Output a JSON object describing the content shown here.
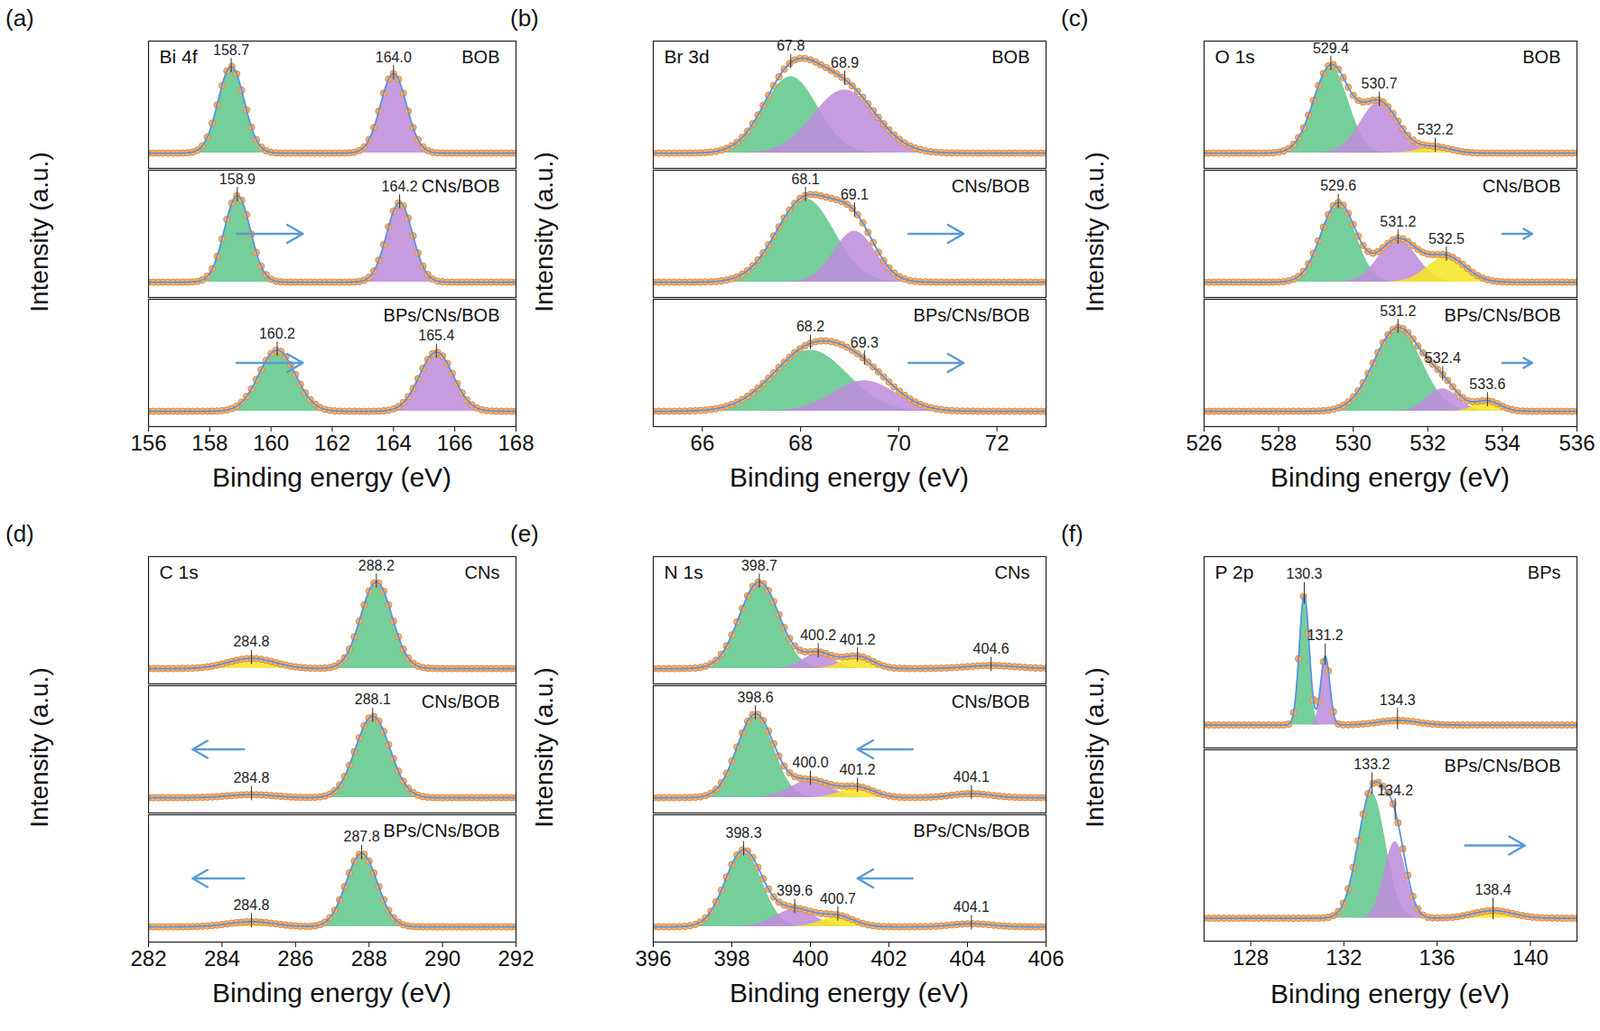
{
  "chart_data": [
    {
      "type": "xps",
      "subplot_label": "(a)",
      "title": "Bi 4f",
      "x_label": "Binding energy (eV)",
      "y_label": "Intensity (a.u.)",
      "xlim": [
        156,
        168
      ],
      "xticks": [
        156,
        158,
        160,
        162,
        164,
        166,
        168
      ],
      "ylim": [
        -0.15,
        1.1
      ],
      "tick_labels": "x",
      "samples": [
        {
          "name": "BOB",
          "peaks": [
            {
              "center": 158.7,
              "label": "158.7",
              "height": 0.85,
              "fwhm": 1.0,
              "color": "#62c88c"
            },
            {
              "center": 164.0,
              "label": "164.0",
              "height": 0.78,
              "fwhm": 1.0,
              "color": "#bf8ddc"
            }
          ]
        },
        {
          "name": "CNs/BOB",
          "arrow": "right",
          "peaks": [
            {
              "center": 158.9,
              "label": "158.9",
              "height": 0.85,
              "fwhm": 1.0,
              "color": "#62c88c"
            },
            {
              "center": 164.2,
              "label": "164.2",
              "height": 0.78,
              "fwhm": 1.0,
              "color": "#bf8ddc"
            }
          ]
        },
        {
          "name": "BPs/CNs/BOB",
          "arrow": "right",
          "peaks": [
            {
              "center": 160.2,
              "label": "160.2",
              "height": 0.6,
              "fwhm": 1.4,
              "color": "#62c88c"
            },
            {
              "center": 165.4,
              "label": "165.4",
              "height": 0.58,
              "fwhm": 1.3,
              "color": "#bf8ddc"
            }
          ]
        }
      ]
    },
    {
      "type": "xps",
      "subplot_label": "(b)",
      "title": "Br 3d",
      "x_label": "Binding energy (eV)",
      "y_label": "Intensity (a.u.)",
      "xlim": [
        65,
        73
      ],
      "xticks": [
        66,
        68,
        70,
        72
      ],
      "ylim": [
        -0.15,
        1.1
      ],
      "tick_labels": "x",
      "samples": [
        {
          "name": "BOB",
          "peaks": [
            {
              "center": 67.8,
              "label": "67.8",
              "height": 0.75,
              "fwhm": 1.3,
              "color": "#62c88c"
            },
            {
              "center": 68.9,
              "label": "68.9",
              "height": 0.62,
              "fwhm": 1.5,
              "color": "#bf8ddc"
            }
          ]
        },
        {
          "name": "CNs/BOB",
          "arrow": "right",
          "peaks": [
            {
              "center": 68.1,
              "label": "68.1",
              "height": 0.82,
              "fwhm": 1.4,
              "color": "#62c88c"
            },
            {
              "center": 69.1,
              "label": "69.1",
              "height": 0.5,
              "fwhm": 1.0,
              "color": "#bf8ddc"
            }
          ]
        },
        {
          "name": "BPs/CNs/BOB",
          "arrow": "right",
          "peaks": [
            {
              "center": 68.2,
              "label": "68.2",
              "height": 0.6,
              "fwhm": 1.8,
              "color": "#62c88c"
            },
            {
              "center": 69.3,
              "label": "69.3",
              "height": 0.3,
              "fwhm": 1.5,
              "color": "#bf8ddc"
            }
          ]
        }
      ]
    },
    {
      "type": "xps",
      "subplot_label": "(c)",
      "title": "O 1s",
      "x_label": "Binding energy (eV)",
      "y_label": "Intensity (a.u.)",
      "xlim": [
        526,
        536
      ],
      "xticks": [
        526,
        528,
        530,
        532,
        534,
        536
      ],
      "ylim": [
        -0.15,
        1.1
      ],
      "tick_labels": "x",
      "samples": [
        {
          "name": "BOB",
          "peaks": [
            {
              "center": 529.4,
              "label": "529.4",
              "height": 0.85,
              "fwhm": 1.1,
              "color": "#62c88c"
            },
            {
              "center": 530.7,
              "label": "530.7",
              "height": 0.5,
              "fwhm": 1.2,
              "color": "#bf8ddc"
            },
            {
              "center": 532.2,
              "label": "532.2",
              "height": 0.06,
              "fwhm": 1.0,
              "color": "#f5e628"
            }
          ]
        },
        {
          "name": "CNs/BOB",
          "arrow": "right",
          "peaks": [
            {
              "center": 529.6,
              "label": "529.6",
              "height": 0.78,
              "fwhm": 1.1,
              "color": "#62c88c"
            },
            {
              "center": 531.2,
              "label": "531.2",
              "height": 0.42,
              "fwhm": 1.2,
              "color": "#bf8ddc"
            },
            {
              "center": 532.5,
              "label": "532.5",
              "height": 0.25,
              "fwhm": 1.2,
              "color": "#f5e628"
            }
          ]
        },
        {
          "name": "BPs/CNs/BOB",
          "arrow": "right",
          "peaks": [
            {
              "center": 531.2,
              "label": "531.2",
              "height": 0.82,
              "fwhm": 1.5,
              "color": "#62c88c"
            },
            {
              "center": 532.4,
              "label": "532.4",
              "height": 0.22,
              "fwhm": 1.0,
              "color": "#bf8ddc"
            },
            {
              "center": 533.6,
              "label": "533.6",
              "height": 0.1,
              "fwhm": 0.8,
              "color": "#f5e628"
            }
          ]
        }
      ]
    },
    {
      "type": "xps",
      "subplot_label": "(d)",
      "title": "C 1s",
      "x_label": "Binding energy (eV)",
      "y_label": "Intensity (a.u.)",
      "xlim": [
        282,
        292
      ],
      "xticks": [
        282,
        284,
        286,
        288,
        290,
        292
      ],
      "ylim": [
        -0.15,
        1.1
      ],
      "tick_labels": "x",
      "samples": [
        {
          "name": "CNs",
          "peaks": [
            {
              "center": 284.8,
              "label": "284.8",
              "height": 0.1,
              "fwhm": 1.5,
              "color": "#f5e628"
            },
            {
              "center": 288.2,
              "label": "288.2",
              "height": 0.85,
              "fwhm": 1.0,
              "color": "#62c88c"
            }
          ]
        },
        {
          "name": "CNs/BOB",
          "arrow": "left",
          "peaks": [
            {
              "center": 284.8,
              "label": "284.8",
              "height": 0.03,
              "fwhm": 1.5,
              "color": "#f5e628"
            },
            {
              "center": 288.1,
              "label": "288.1",
              "height": 0.8,
              "fwhm": 1.1,
              "color": "#62c88c"
            }
          ]
        },
        {
          "name": "BPs/CNs/BOB",
          "arrow": "left",
          "peaks": [
            {
              "center": 284.8,
              "label": "284.8",
              "height": 0.05,
              "fwhm": 1.5,
              "color": "#f5e628"
            },
            {
              "center": 287.8,
              "label": "287.8",
              "height": 0.72,
              "fwhm": 1.0,
              "color": "#62c88c"
            }
          ]
        }
      ]
    },
    {
      "type": "xps",
      "subplot_label": "(e)",
      "title": "N 1s",
      "x_label": "Binding energy (eV)",
      "y_label": "Intensity (a.u.)",
      "xlim": [
        396,
        406
      ],
      "xticks": [
        396,
        398,
        400,
        402,
        404,
        406
      ],
      "ylim": [
        -0.15,
        1.1
      ],
      "tick_labels": "x",
      "samples": [
        {
          "name": "CNs",
          "peaks": [
            {
              "center": 398.7,
              "label": "398.7",
              "height": 0.85,
              "fwhm": 1.2,
              "color": "#62c88c"
            },
            {
              "center": 400.2,
              "label": "400.2",
              "height": 0.15,
              "fwhm": 0.9,
              "color": "#bf8ddc"
            },
            {
              "center": 401.2,
              "label": "401.2",
              "height": 0.12,
              "fwhm": 0.9,
              "color": "#f5e628"
            },
            {
              "center": 404.6,
              "label": "404.6",
              "height": 0.03,
              "fwhm": 1.5,
              "color": "#6cc8ae"
            }
          ]
        },
        {
          "name": "CNs/BOB",
          "arrow": "left",
          "peaks": [
            {
              "center": 398.6,
              "label": "398.6",
              "height": 0.82,
              "fwhm": 1.1,
              "color": "#62c88c"
            },
            {
              "center": 400.0,
              "label": "400.0",
              "height": 0.17,
              "fwhm": 1.2,
              "color": "#bf8ddc"
            },
            {
              "center": 401.2,
              "label": "401.2",
              "height": 0.1,
              "fwhm": 1.0,
              "color": "#f5e628"
            },
            {
              "center": 404.1,
              "label": "404.1",
              "height": 0.04,
              "fwhm": 1.2,
              "color": "#6cc8ae"
            }
          ]
        },
        {
          "name": "BPs/CNs/BOB",
          "arrow": "left",
          "peaks": [
            {
              "center": 398.3,
              "label": "398.3",
              "height": 0.75,
              "fwhm": 1.1,
              "color": "#62c88c"
            },
            {
              "center": 399.6,
              "label": "399.6",
              "height": 0.17,
              "fwhm": 1.2,
              "color": "#bf8ddc"
            },
            {
              "center": 400.7,
              "label": "400.7",
              "height": 0.1,
              "fwhm": 1.0,
              "color": "#f5e628"
            },
            {
              "center": 404.1,
              "label": "404.1",
              "height": 0.03,
              "fwhm": 1.2,
              "color": "#6cc8ae"
            }
          ]
        }
      ]
    },
    {
      "type": "xps",
      "subplot_label": "(f)",
      "title": "P 2p",
      "x_label": "Binding energy (eV)",
      "y_label": "Intensity (a.u.)",
      "xlim": [
        126,
        142
      ],
      "xticks": [
        128,
        132,
        136,
        140
      ],
      "ylim": [
        -0.15,
        1.1
      ],
      "tick_labels": "x",
      "samples": [
        {
          "name": "BPs",
          "peaks": [
            {
              "center": 130.3,
              "label": "130.3",
              "height": 0.85,
              "fwhm": 0.5,
              "color": "#62c88c"
            },
            {
              "center": 131.2,
              "label": "131.2",
              "height": 0.45,
              "fwhm": 0.45,
              "color": "#bf8ddc"
            },
            {
              "center": 134.3,
              "label": "134.3",
              "height": 0.03,
              "fwhm": 2.0,
              "color": "#f5e628"
            }
          ]
        },
        {
          "name": "BPs/CNs/BOB",
          "arrow": "right",
          "peaks": [
            {
              "center": 133.2,
              "label": "133.2",
              "height": 0.82,
              "fwhm": 1.4,
              "color": "#62c88c"
            },
            {
              "center": 134.2,
              "label": "134.2",
              "height": 0.5,
              "fwhm": 1.1,
              "color": "#bf8ddc"
            },
            {
              "center": 138.4,
              "label": "138.4",
              "height": 0.05,
              "fwhm": 2.0,
              "color": "#f5e628"
            }
          ]
        }
      ]
    }
  ]
}
